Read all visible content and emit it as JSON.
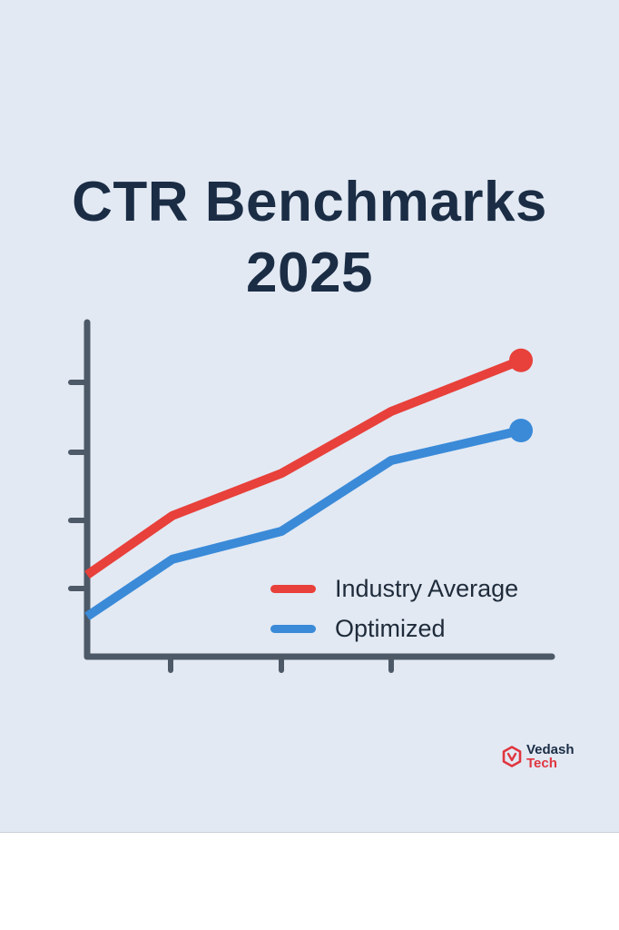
{
  "page": {
    "background_color": "#e2e9f3",
    "text_color": "#1b2d45"
  },
  "header": {
    "title_line1": "CTR Benchmarks",
    "title_line2": "2025"
  },
  "chart_data": {
    "type": "line",
    "title": "CTR Benchmarks 2025",
    "xlabel": "",
    "ylabel": "",
    "x": [
      0,
      1,
      2,
      3,
      4
    ],
    "x_tick_labels": [
      "",
      "",
      ""
    ],
    "x_ticks": [
      1,
      2,
      3
    ],
    "y_ticks": [
      1,
      2,
      3,
      4
    ],
    "y_tick_labels": [
      "",
      "",
      "",
      ""
    ],
    "xlim": [
      0,
      4.6
    ],
    "ylim": [
      0,
      4.9
    ],
    "grid": false,
    "legend_position": "bottom-right",
    "series": [
      {
        "name": "Industry Average",
        "color": "#e8403a",
        "values": [
          1.2,
          2.07,
          2.69,
          3.6,
          4.35
        ],
        "end_marker": true
      },
      {
        "name": "Optimized",
        "color": "#3a8ad8",
        "values": [
          0.59,
          1.43,
          1.84,
          2.88,
          3.32
        ],
        "end_marker": true
      }
    ],
    "axis_color": "#4e5967"
  },
  "legend": {
    "items": [
      {
        "label": "Industry Average",
        "color": "#e8403a"
      },
      {
        "label": "Optimized",
        "color": "#3a8ad8"
      }
    ]
  },
  "brand": {
    "name_line1": "Vedash",
    "name_line2": "Tech",
    "icon": "hexagon-v-logo-icon",
    "accent_color": "#e0363f"
  }
}
